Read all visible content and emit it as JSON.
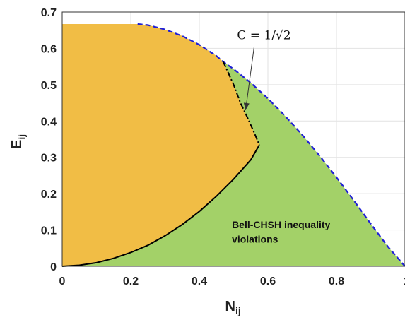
{
  "chart_data": {
    "type": "area",
    "xlabel": "N",
    "xlabel_sub": "ij",
    "ylabel": "E",
    "ylabel_sub": "ij",
    "xlim": [
      0,
      1
    ],
    "ylim": [
      0,
      0.7
    ],
    "xticks": [
      "0",
      "0.2",
      "0.4",
      "0.6",
      "0.8",
      "1"
    ],
    "yticks": [
      "0",
      "0.1",
      "0.2",
      "0.3",
      "0.4",
      "0.5",
      "0.6",
      "0.7"
    ],
    "grid": true,
    "colors": {
      "orange_region": "#f1bd45",
      "green_region": "#a3d168",
      "outer_boundary": "#1f1fd6",
      "inner_boundary": "#000000"
    },
    "outer_boundary_dashed": {
      "x": [
        0.22,
        0.25,
        0.3,
        0.35,
        0.4,
        0.45,
        0.47,
        0.5,
        0.55,
        0.6,
        0.65,
        0.7,
        0.75,
        0.8,
        0.85,
        0.9,
        0.95,
        1.0
      ],
      "y": [
        0.667,
        0.664,
        0.652,
        0.634,
        0.61,
        0.579,
        0.563,
        0.543,
        0.505,
        0.462,
        0.414,
        0.362,
        0.305,
        0.245,
        0.182,
        0.117,
        0.054,
        0.0
      ]
    },
    "orange_top": {
      "x": [
        0.0,
        0.22
      ],
      "y": [
        0.667,
        0.667
      ]
    },
    "lower_curve_solid": {
      "x": [
        0.0,
        0.05,
        0.1,
        0.15,
        0.2,
        0.25,
        0.3,
        0.35,
        0.4,
        0.45,
        0.5,
        0.55,
        0.575
      ],
      "y": [
        0.0,
        0.003,
        0.01,
        0.022,
        0.038,
        0.058,
        0.084,
        0.115,
        0.151,
        0.193,
        0.24,
        0.293,
        0.334
      ]
    },
    "dash_dot_boundary": {
      "x": [
        0.47,
        0.5,
        0.52,
        0.54,
        0.56,
        0.575
      ],
      "y": [
        0.563,
        0.5,
        0.45,
        0.41,
        0.368,
        0.334
      ]
    },
    "annotations": {
      "formula": "C = 1/√2",
      "region_label_line1": "Bell-CHSH inequality",
      "region_label_line2": "violations"
    }
  }
}
